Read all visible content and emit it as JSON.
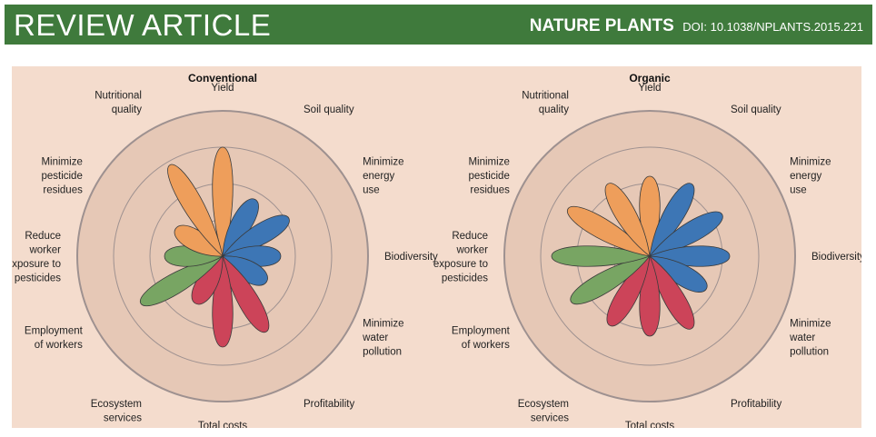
{
  "header": {
    "section": "REVIEW ARTICLE",
    "journal": "NATURE PLANTS",
    "doi": "DOI: 10.1038/NPLANTS.2015.221"
  },
  "colors": {
    "header_bg": "#3f7a3c",
    "panel_bg": "#f4dccd",
    "disc": "#e6c8b6",
    "ring": "#9e9190",
    "production": "#ee9e5b",
    "environment": "#3d76b5",
    "economic": "#cc4459",
    "social": "#78a563"
  },
  "chart_data": [
    {
      "type": "polar-petal",
      "title": "Conventional",
      "scale_rings": [
        1,
        2,
        3
      ],
      "categories": [
        "Yield",
        "Soil quality",
        "Minimize energy use",
        "Biodiversity",
        "Minimize water pollution",
        "Profitability",
        "Total costs",
        "Ecosystem services",
        "Employment of workers",
        "Reduce worker exposure to pesticides",
        "Minimize pesticide residues",
        "Nutritional quality"
      ],
      "label_lines": [
        [
          "Yield"
        ],
        [
          "Soil quality"
        ],
        [
          "Minimize",
          "energy",
          "use"
        ],
        [
          "Biodiversity"
        ],
        [
          "Minimize",
          "water",
          "pollution"
        ],
        [
          "Profitability"
        ],
        [
          "Total costs"
        ],
        [
          "Ecosystem",
          "services"
        ],
        [
          "Employment",
          "of workers"
        ],
        [
          "Reduce",
          "worker",
          "exposure to",
          "pesticides"
        ],
        [
          "Minimize",
          "pesticide",
          "residues"
        ],
        [
          "Nutritional",
          "quality"
        ]
      ],
      "values": [
        3.0,
        1.8,
        2.1,
        1.6,
        1.4,
        2.4,
        2.5,
        1.5,
        2.6,
        1.6,
        1.5,
        2.9
      ],
      "groups": [
        "production",
        "environment",
        "environment",
        "environment",
        "environment",
        "economic",
        "economic",
        "economic",
        "social",
        "social",
        "production",
        "production"
      ]
    },
    {
      "type": "polar-petal",
      "title": "Organic",
      "scale_rings": [
        1,
        2,
        3
      ],
      "categories": [
        "Yield",
        "Soil quality",
        "Minimize energy use",
        "Biodiversity",
        "Minimize water pollution",
        "Profitability",
        "Total costs",
        "Ecosystem services",
        "Employment of workers",
        "Reduce worker exposure to pesticides",
        "Minimize pesticide residues",
        "Nutritional quality"
      ],
      "label_lines": [
        [
          "Yield"
        ],
        [
          "Soil quality"
        ],
        [
          "Minimize",
          "energy",
          "use"
        ],
        [
          "Biodiversity"
        ],
        [
          "Minimize",
          "water",
          "pollution"
        ],
        [
          "Profitability"
        ],
        [
          "Total costs"
        ],
        [
          "Ecosystem",
          "services"
        ],
        [
          "Employment",
          "of workers"
        ],
        [
          "Reduce",
          "worker",
          "exposure to",
          "pesticides"
        ],
        [
          "Minimize",
          "pesticide",
          "residues"
        ],
        [
          "Nutritional",
          "quality"
        ]
      ],
      "values": [
        2.2,
        2.3,
        2.3,
        2.2,
        1.8,
        2.3,
        2.2,
        2.2,
        2.5,
        2.7,
        2.6,
        2.3
      ],
      "groups": [
        "production",
        "environment",
        "environment",
        "environment",
        "environment",
        "economic",
        "economic",
        "economic",
        "social",
        "social",
        "production",
        "production"
      ]
    }
  ]
}
